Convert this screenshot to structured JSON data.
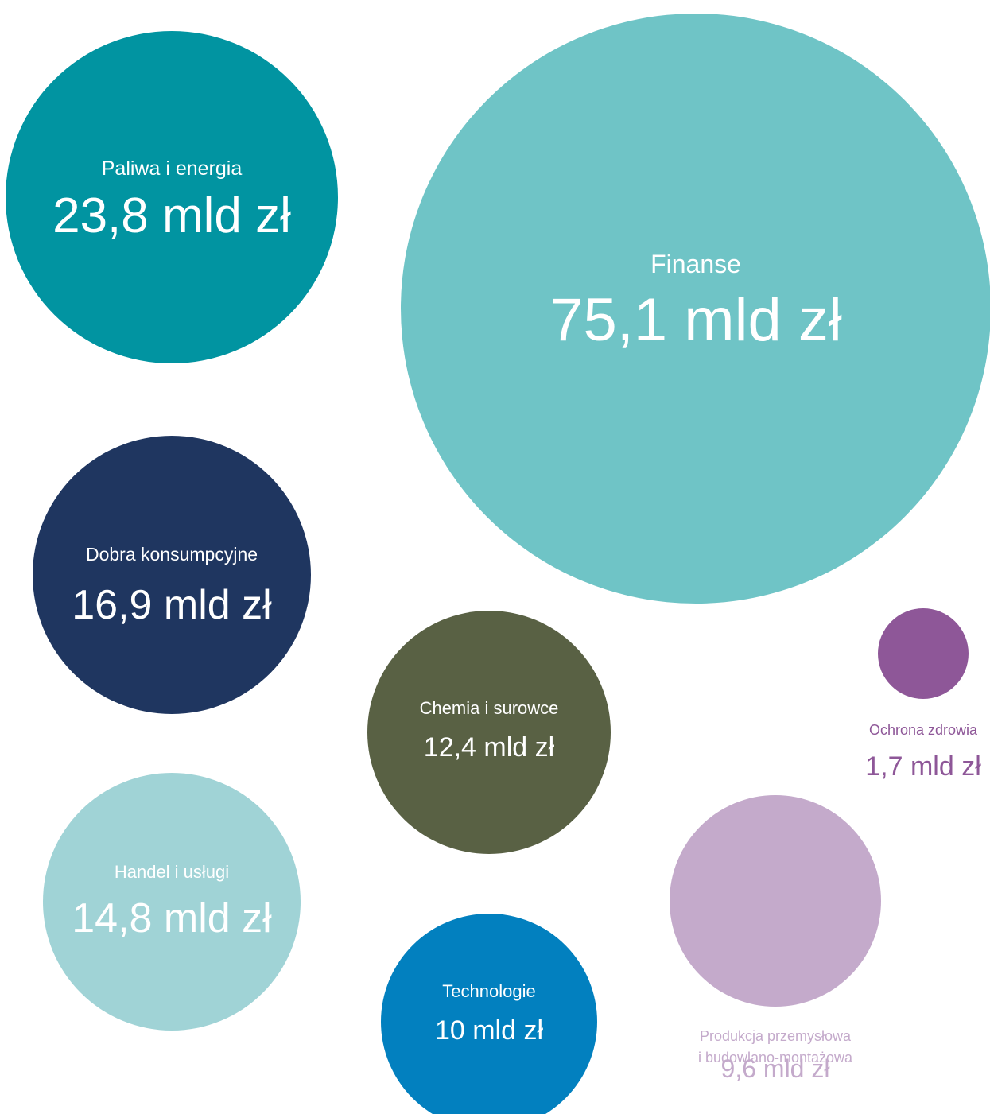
{
  "chart_data": {
    "type": "bubble",
    "unit": "mld zł",
    "bubbles": [
      {
        "name": "Paliwa i energia",
        "value": 23.8,
        "value_label": "23,8 mld zł",
        "color": "#0194A1",
        "text_color": "#ffffff",
        "label_position": "inside"
      },
      {
        "name": "Finanse",
        "value": 75.1,
        "value_label": "75,1 mld zł",
        "color": "#6FC4C6",
        "text_color": "#ffffff",
        "label_position": "inside"
      },
      {
        "name": "Dobra konsumpcyjne",
        "value": 16.9,
        "value_label": "16,9 mld zł",
        "color": "#1F3660",
        "text_color": "#ffffff",
        "label_position": "inside"
      },
      {
        "name": "Chemia i surowce",
        "value": 12.4,
        "value_label": "12,4 mld zł",
        "color": "#596144",
        "text_color": "#ffffff",
        "label_position": "inside"
      },
      {
        "name": "Ochrona zdrowia",
        "value": 1.7,
        "value_label": "1,7 mld zł",
        "color": "#8E5798",
        "text_color": "#8E5798",
        "label_position": "below"
      },
      {
        "name": "Handel i usługi",
        "value": 14.8,
        "value_label": "14,8 mld zł",
        "color": "#A0D3D6",
        "text_color": "#ffffff",
        "label_position": "inside"
      },
      {
        "name": "Technologie",
        "value": 10,
        "value_label": "10 mld zł",
        "color": "#0280BF",
        "text_color": "#ffffff",
        "label_position": "inside"
      },
      {
        "name": "Produkcja przemysłowa i budowlano-montażowa",
        "name_lines": [
          "Produkcja przemysłowa",
          "i budowlano-montażowa"
        ],
        "value": 9.6,
        "value_label": "9,6 mld zł",
        "color": "#C4AACB",
        "text_color": "#C4AACB",
        "label_position": "below"
      }
    ]
  }
}
